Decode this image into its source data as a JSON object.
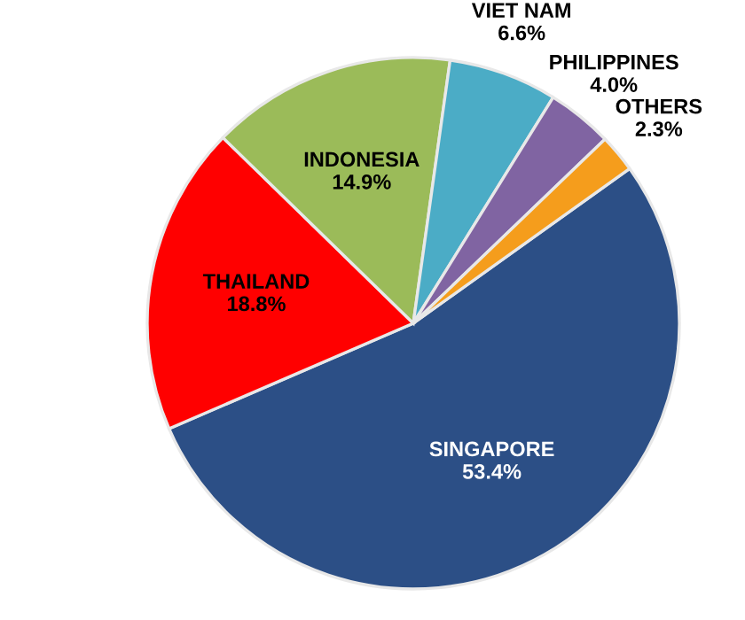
{
  "chart_data": {
    "type": "pie",
    "categories": [
      "SINGAPORE",
      "THAILAND",
      "INDONESIA",
      "VIET NAM",
      "PHILIPPINES",
      "OTHERS"
    ],
    "values": [
      53.4,
      18.8,
      14.9,
      6.6,
      4.0,
      2.3
    ],
    "value_labels": [
      "53.4%",
      "18.8%",
      "14.9%",
      "6.6%",
      "4.0%",
      "2.3%"
    ],
    "colors": [
      "#2c4f86",
      "#ff0000",
      "#9bbb59",
      "#4bacc6",
      "#8064a2",
      "#f59d1c"
    ],
    "legend": false
  }
}
